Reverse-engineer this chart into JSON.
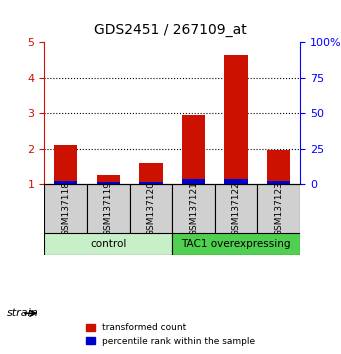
{
  "title": "GDS2451 / 267109_at",
  "samples": [
    "GSM137118",
    "GSM137119",
    "GSM137120",
    "GSM137121",
    "GSM137122",
    "GSM137123"
  ],
  "red_values": [
    2.1,
    1.25,
    1.6,
    2.95,
    4.65,
    1.95
  ],
  "blue_values": [
    0.08,
    0.07,
    0.06,
    0.13,
    0.15,
    0.08
  ],
  "y_min": 1.0,
  "y_max": 5.0,
  "y_ticks": [
    1,
    2,
    3,
    4,
    5
  ],
  "y2_ticks": [
    0,
    25,
    50,
    75,
    100
  ],
  "y2_labels": [
    "0",
    "25",
    "50",
    "75",
    "100%"
  ],
  "groups": [
    {
      "label": "control",
      "start": 0,
      "end": 3,
      "color": "#c8f0c8"
    },
    {
      "label": "TAC1 overexpressing",
      "start": 3,
      "end": 6,
      "color": "#50d050"
    }
  ],
  "bar_width": 0.55,
  "red_color": "#cc1100",
  "blue_color": "#0000cc",
  "background_color": "#ffffff",
  "strain_label": "strain",
  "legend_red": "transformed count",
  "legend_blue": "percentile rank within the sample"
}
